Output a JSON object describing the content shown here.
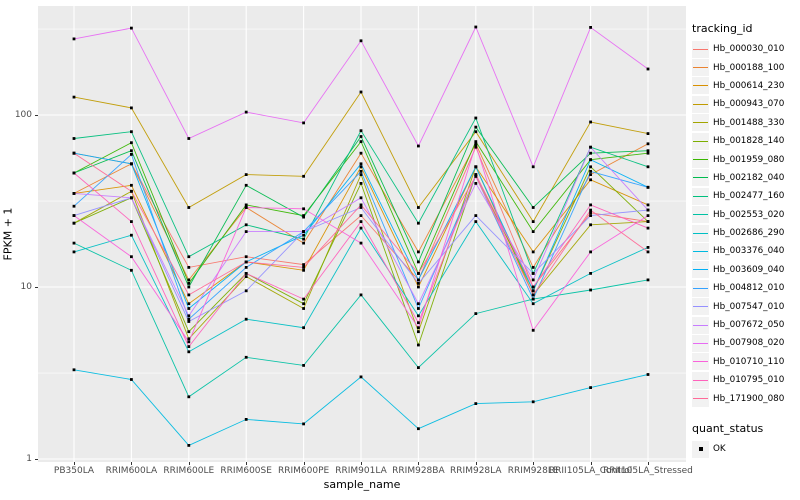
{
  "colors": {
    "panel_bg": "#EBEBEB",
    "grid": "#FFFFFF",
    "tick_mark": "#333333",
    "tick_label": "#4D4D4D",
    "point": "#000000",
    "legend_key_bg": "#F2F2F2"
  },
  "chart_data": {
    "type": "line",
    "xlabel": "sample_name",
    "ylabel": "FPKM + 1",
    "y_scale": "log10",
    "ylim": [
      1,
      430
    ],
    "y_major_ticks": [
      1,
      10,
      100
    ],
    "y_minor_breaks": [
      3.16,
      31.6,
      316
    ],
    "grid": "on",
    "legend_position": "right",
    "legend_title": "tracking_id",
    "shape_legend": {
      "title": "quant_status",
      "ok_label": "OK"
    },
    "categories": [
      "PB350LA",
      "RRIM600LA",
      "RRIM600LE",
      "RRIM600SE",
      "RRIM600PE",
      "RRIM901LA",
      "RRIM928BA",
      "RRIM928LA",
      "RRIM928LE",
      "RRII105LA_Control",
      "RRII105LA_Stressed"
    ],
    "series": [
      {
        "name": "Hb_000030_010",
        "color": "#F8766D",
        "values": [
          60,
          52,
          13,
          15,
          13.5,
          26,
          11,
          65,
          10,
          27,
          24
        ]
      },
      {
        "name": "Hb_000188_100",
        "color": "#EA8331",
        "values": [
          35,
          52,
          11,
          29,
          18,
          60,
          16,
          68,
          13,
          45,
          68
        ]
      },
      {
        "name": "Hb_000614_230",
        "color": "#D89000",
        "values": [
          35,
          39,
          8,
          14,
          12.5,
          50,
          10,
          50,
          16,
          42,
          30
        ]
      },
      {
        "name": "Hb_000943_070",
        "color": "#C09B00",
        "values": [
          127,
          110,
          29,
          45,
          44,
          136,
          29,
          80,
          24,
          91,
          78
        ]
      },
      {
        "name": "Hb_001488_330",
        "color": "#A3A500",
        "values": [
          23.5,
          36,
          5,
          11.5,
          7.5,
          45,
          5.5,
          50,
          9,
          23,
          24
        ]
      },
      {
        "name": "Hb_001828_140",
        "color": "#7CAE00",
        "values": [
          23.5,
          33,
          5.5,
          12,
          8,
          40,
          4.6,
          45,
          9.5,
          50,
          24
        ]
      },
      {
        "name": "Hb_001959_080",
        "color": "#39B600",
        "values": [
          46,
          69,
          10.5,
          30,
          26,
          70,
          12,
          70,
          21,
          55,
          60
        ]
      },
      {
        "name": "Hb_002182_040",
        "color": "#00BB4E",
        "values": [
          46,
          62,
          10,
          39,
          25.5,
          75,
          14,
          85,
          29,
          60,
          62
        ]
      },
      {
        "name": "Hb_002477_160",
        "color": "#00BF7D",
        "values": [
          73,
          80,
          15,
          23,
          19,
          81,
          23.5,
          96,
          12,
          65,
          50
        ]
      },
      {
        "name": "Hb_002553_020",
        "color": "#00C1A3",
        "values": [
          18,
          12.5,
          2.3,
          3.9,
          3.5,
          9,
          3.4,
          7,
          8.5,
          9.6,
          11
        ]
      },
      {
        "name": "Hb_002686_290",
        "color": "#00BFC4",
        "values": [
          16,
          20,
          4.2,
          6.5,
          5.8,
          22,
          6.8,
          24,
          8,
          12,
          17
        ]
      },
      {
        "name": "Hb_003376_040",
        "color": "#00BAE0",
        "values": [
          3.3,
          2.9,
          1.2,
          1.7,
          1.6,
          3,
          1.5,
          2.1,
          2.15,
          2.6,
          3.1
        ]
      },
      {
        "name": "Hb_003609_040",
        "color": "#00B0F6",
        "values": [
          60,
          52,
          7.5,
          14,
          20,
          52,
          11,
          50,
          9.5,
          55,
          38
        ]
      },
      {
        "name": "Hb_004812_010",
        "color": "#35A2FF",
        "values": [
          29.5,
          59,
          6.5,
          13,
          21,
          47,
          7.5,
          44,
          8.5,
          47,
          38
        ]
      },
      {
        "name": "Hb_007547_010",
        "color": "#9590FF",
        "values": [
          26,
          33,
          6.3,
          9.5,
          21,
          29,
          10.5,
          26,
          12,
          26,
          28
        ]
      },
      {
        "name": "Hb_007672_050",
        "color": "#C77CFF",
        "values": [
          35,
          33,
          6.8,
          21,
          21,
          33,
          8,
          40,
          11,
          65,
          28
        ]
      },
      {
        "name": "Hb_007908_020",
        "color": "#E76BF3",
        "values": [
          277,
          320,
          73,
          104,
          90,
          270,
          66,
          325,
          50,
          323,
          185
        ]
      },
      {
        "name": "Hb_010710_110",
        "color": "#FA62DB",
        "values": [
          26,
          15,
          4.8,
          29,
          28.5,
          18,
          5.8,
          67,
          5.6,
          16,
          26
        ]
      },
      {
        "name": "Hb_010795_010",
        "color": "#FF62BC",
        "values": [
          46,
          24,
          4.5,
          12,
          8.5,
          24,
          6.2,
          45,
          10,
          30,
          22
        ]
      },
      {
        "name": "Hb_171900_080",
        "color": "#FF6A98",
        "values": [
          60,
          36,
          9,
          14,
          13,
          30,
          12,
          44,
          9,
          28,
          16
        ]
      }
    ]
  }
}
